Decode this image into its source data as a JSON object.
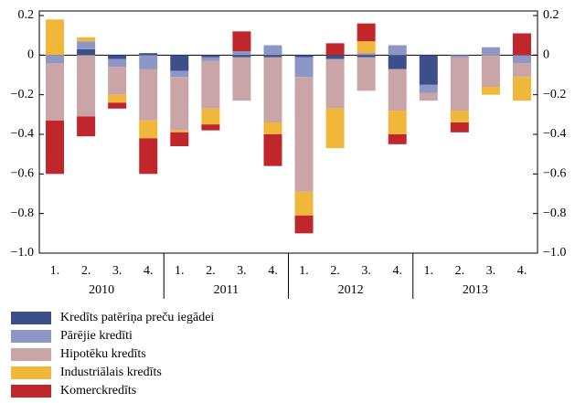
{
  "chart_data": {
    "type": "stacked_bar",
    "categories": [
      "1.",
      "2.",
      "3.",
      "4.",
      "1.",
      "2.",
      "3.",
      "4.",
      "1.",
      "2.",
      "3.",
      "4.",
      "1.",
      "2.",
      "3.",
      "4."
    ],
    "groups": [
      "2010",
      "2011",
      "2012",
      "2013"
    ],
    "series": [
      {
        "name": "Kredīts patēriņa preču iegādei",
        "color": "#3d4f8a",
        "values": [
          0,
          0.03,
          -0.02,
          0.01,
          -0.08,
          -0.01,
          -0.01,
          -0.01,
          -0.01,
          -0.02,
          -0.01,
          -0.07,
          -0.15,
          0,
          0,
          0
        ]
      },
      {
        "name": "Pārējie kredīti",
        "color": "#8d97c6",
        "values": [
          -0.04,
          0.04,
          -0.04,
          -0.07,
          -0.03,
          -0.02,
          0.02,
          0.05,
          -0.1,
          0,
          0.01,
          0.05,
          -0.04,
          -0.01,
          0.04,
          -0.04
        ]
      },
      {
        "name": "Hipotēku kredīts",
        "color": "#c9a5a8",
        "values": [
          -0.29,
          -0.31,
          -0.14,
          -0.26,
          -0.27,
          -0.24,
          -0.22,
          -0.33,
          -0.58,
          -0.25,
          -0.17,
          -0.21,
          -0.04,
          -0.27,
          -0.16,
          -0.07
        ]
      },
      {
        "name": "Industriālais kredīts",
        "color": "#f0b73a",
        "values": [
          0.18,
          0.02,
          -0.04,
          -0.09,
          -0.01,
          -0.08,
          0,
          -0.06,
          -0.12,
          -0.2,
          0.06,
          -0.12,
          0,
          -0.06,
          -0.04,
          -0.12
        ]
      },
      {
        "name": "Komerckredīts",
        "color": "#c0272d",
        "values": [
          -0.27,
          -0.1,
          -0.03,
          -0.18,
          -0.07,
          -0.03,
          0.1,
          -0.16,
          -0.09,
          0.06,
          0.09,
          -0.05,
          0,
          -0.05,
          0,
          0.11
        ]
      }
    ],
    "ylim": [
      -1.0,
      0.2
    ],
    "yticks": [
      {
        "value": -1.0,
        "label": "−1.0"
      },
      {
        "value": -0.8,
        "label": "−0.8"
      },
      {
        "value": -0.6,
        "label": "−0.6"
      },
      {
        "value": -0.4,
        "label": "−0.4"
      },
      {
        "value": -0.2,
        "label": "−0.2"
      },
      0,
      0.2
    ]
  }
}
